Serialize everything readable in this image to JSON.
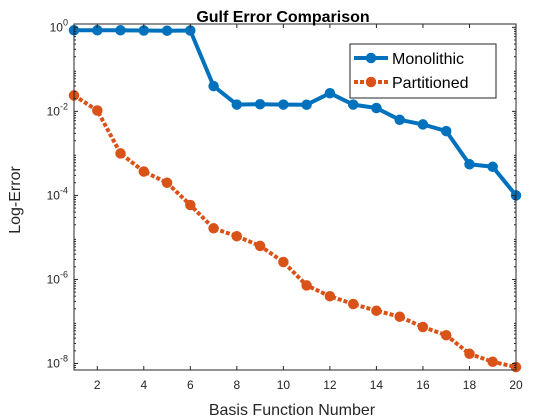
{
  "chart_data": {
    "type": "line",
    "title": "Gulf Error Comparison",
    "xlabel": "Basis Function Number",
    "ylabel": "Log-Error",
    "xlim": [
      1,
      20
    ],
    "ylim": [
      7e-09,
      1.2
    ],
    "yscale": "log",
    "xticks": [
      2,
      4,
      6,
      8,
      10,
      12,
      14,
      16,
      18,
      20
    ],
    "yticks": [
      {
        "value": 1,
        "base": "10",
        "exp": "0"
      },
      {
        "value": 0.01,
        "base": "10",
        "exp": "-2"
      },
      {
        "value": 0.0001,
        "base": "10",
        "exp": "-4"
      },
      {
        "value": 1e-06,
        "base": "10",
        "exp": "-6"
      },
      {
        "value": 1e-08,
        "base": "10",
        "exp": "-8"
      }
    ],
    "grid": false,
    "legend_position": "top-right",
    "x": [
      1,
      2,
      3,
      4,
      5,
      6,
      7,
      8,
      9,
      10,
      11,
      12,
      13,
      14,
      15,
      16,
      17,
      18,
      19,
      20
    ],
    "series": [
      {
        "name": "Monolithic",
        "color": "#0072BD",
        "style": "solid",
        "marker": "circle",
        "values": [
          0.85,
          0.85,
          0.85,
          0.84,
          0.83,
          0.84,
          0.04,
          0.0145,
          0.0148,
          0.0145,
          0.0144,
          0.027,
          0.0145,
          0.012,
          0.0063,
          0.0049,
          0.0034,
          0.00055,
          0.00048,
          0.0001
        ]
      },
      {
        "name": "Partitioned",
        "color": "#D95319",
        "style": "dotted",
        "marker": "circle",
        "values": [
          0.024,
          0.0105,
          0.001,
          0.00037,
          0.0002,
          5.9e-05,
          1.65e-05,
          1.07e-05,
          6.3e-06,
          2.6e-06,
          7.2e-07,
          4e-07,
          2.6e-07,
          1.8e-07,
          1.3e-07,
          7.4e-08,
          4.7e-08,
          1.7e-08,
          1.1e-08,
          8.2e-09
        ]
      }
    ]
  }
}
